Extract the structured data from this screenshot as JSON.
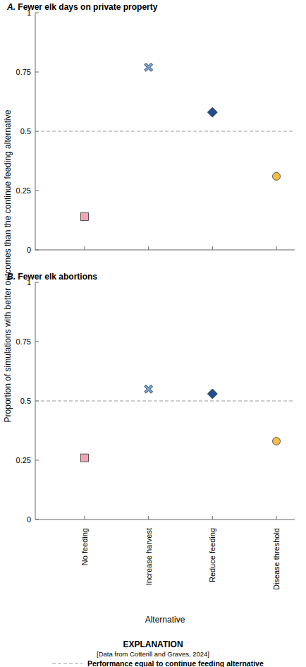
{
  "chart_data": [
    {
      "type": "scatter",
      "title": "A. Fewer elk days on private property",
      "categories": [
        "No feeding",
        "Increase harvest",
        "Reduce feeding",
        "Disease threshold"
      ],
      "series": [
        {
          "color": "#f4a3b4",
          "marker": "square",
          "values": [
            0.14,
            null,
            null,
            null
          ]
        },
        {
          "color": "#6fa3d8",
          "marker": "x",
          "values": [
            null,
            0.77,
            null,
            null
          ]
        },
        {
          "color": "#1f4e8c",
          "marker": "diamond",
          "values": [
            null,
            null,
            0.58,
            null
          ]
        },
        {
          "color": "#f2bd4a",
          "marker": "circle",
          "values": [
            null,
            null,
            null,
            0.31
          ]
        }
      ],
      "ylim": [
        0,
        1
      ],
      "yticks": [
        0,
        0.25,
        0.5,
        0.75,
        1
      ],
      "reference_line": 0.5,
      "tick_labels": "y"
    },
    {
      "type": "scatter",
      "title": "B. Fewer elk abortions",
      "categories": [
        "No feeding",
        "Increase harvest",
        "Reduce feeding",
        "Disease threshold"
      ],
      "series": [
        {
          "color": "#f4a3b4",
          "marker": "square",
          "values": [
            0.26,
            null,
            null,
            null
          ]
        },
        {
          "color": "#6fa3d8",
          "marker": "x",
          "values": [
            null,
            0.55,
            null,
            null
          ]
        },
        {
          "color": "#1f4e8c",
          "marker": "diamond",
          "values": [
            null,
            null,
            0.53,
            null
          ]
        },
        {
          "color": "#f2bd4a",
          "marker": "circle",
          "values": [
            null,
            null,
            null,
            0.33
          ]
        }
      ],
      "ylim": [
        0,
        1
      ],
      "yticks": [
        0,
        0.25,
        0.5,
        0.75,
        1
      ],
      "reference_line": 0.5
    }
  ],
  "y_label": "Proportion of simulations with better outcomes than the continue feeding alternative",
  "x_label": "Alternative",
  "explanation": {
    "title": "EXPLANATION",
    "source": "[Data from Cotterill and Graves, 2024]",
    "reference_label": "Performance equal to continue feeding alternative"
  }
}
